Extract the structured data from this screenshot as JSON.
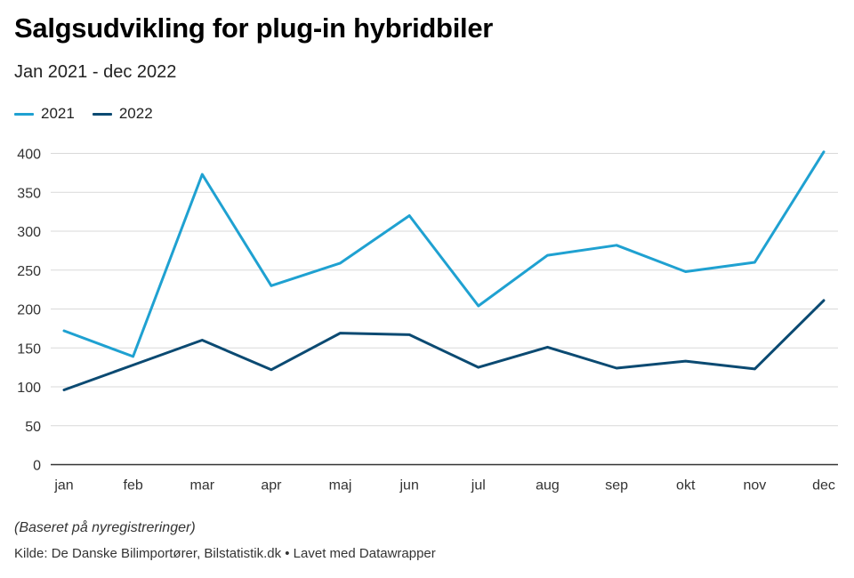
{
  "title": "Salgsudvikling for plug-in hybridbiler",
  "subtitle": "Jan 2021 - dec 2022",
  "note": "(Baseret på nyregistreringer)",
  "source": "Kilde: De Danske Bilimportører, Bilstatistik.dk • Lavet med Datawrapper",
  "chart_data": {
    "type": "line",
    "title": "Salgsudvikling for plug-in hybridbiler",
    "subtitle": "Jan 2021 - dec 2022",
    "xlabel": "",
    "ylabel": "",
    "categories": [
      "jan",
      "feb",
      "mar",
      "apr",
      "maj",
      "jun",
      "jul",
      "aug",
      "sep",
      "okt",
      "nov",
      "dec"
    ],
    "ylim": [
      0,
      400
    ],
    "yticks": [
      0,
      50,
      100,
      150,
      200,
      250,
      300,
      350,
      400
    ],
    "grid": true,
    "legend_position": "top-left",
    "series": [
      {
        "name": "2021",
        "color": "#1fa1d1",
        "values": [
          172,
          139,
          373,
          230,
          259,
          320,
          204,
          269,
          282,
          248,
          260,
          402
        ]
      },
      {
        "name": "2022",
        "color": "#0b4a72",
        "values": [
          96,
          128,
          160,
          122,
          169,
          167,
          125,
          151,
          124,
          133,
          123,
          211
        ]
      }
    ]
  }
}
